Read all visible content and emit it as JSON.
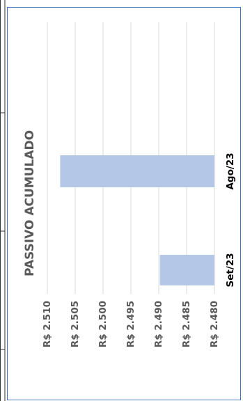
{
  "chart_data": {
    "type": "bar",
    "title": "PASSIVO ACUMULADO",
    "categories": [
      "Ago/23",
      "Set/23"
    ],
    "values": [
      2.5077,
      2.4898
    ],
    "value_axis": {
      "min": 2.48,
      "max": 2.51,
      "step": 0.005,
      "tick_labels": [
        "R$ 2.510",
        "R$ 2.505",
        "R$ 2.500",
        "R$ 2.495",
        "R$ 2.490",
        "R$ 2.485",
        "R$ 2.480"
      ]
    },
    "bar_color": "#b4c7e7",
    "grid": true,
    "orientation": "rotated-90"
  }
}
